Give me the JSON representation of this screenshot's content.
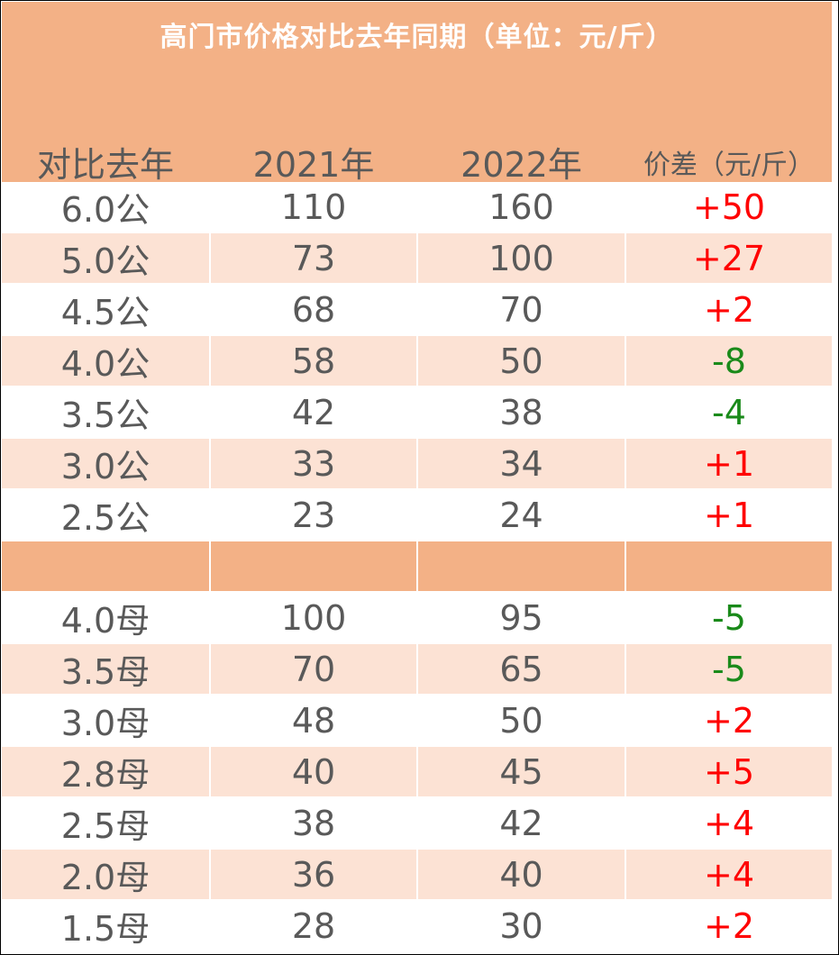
{
  "title": "高门市价格对比去年同期（单位：元/斤）",
  "headers": [
    "对比去年",
    "2021年",
    "2022年",
    "价差（元/斤）"
  ],
  "male_rows": [
    {
      "size": "6.0公",
      "y2021": "110",
      "y2022": "160",
      "diff": "+50",
      "sign": "pos"
    },
    {
      "size": "5.0公",
      "y2021": "73",
      "y2022": "100",
      "diff": "+27",
      "sign": "pos"
    },
    {
      "size": "4.5公",
      "y2021": "68",
      "y2022": "70",
      "diff": "+2",
      "sign": "pos"
    },
    {
      "size": "4.0公",
      "y2021": "58",
      "y2022": "50",
      "diff": "-8",
      "sign": "neg"
    },
    {
      "size": "3.5公",
      "y2021": "42",
      "y2022": "38",
      "diff": "-4",
      "sign": "neg"
    },
    {
      "size": "3.0公",
      "y2021": "33",
      "y2022": "34",
      "diff": "+1",
      "sign": "pos"
    },
    {
      "size": "2.5公",
      "y2021": "23",
      "y2022": "24",
      "diff": "+1",
      "sign": "pos"
    }
  ],
  "female_rows": [
    {
      "size": "4.0母",
      "y2021": "100",
      "y2022": "95",
      "diff": "-5",
      "sign": "neg"
    },
    {
      "size": "3.5母",
      "y2021": "70",
      "y2022": "65",
      "diff": "-5",
      "sign": "neg"
    },
    {
      "size": "3.0母",
      "y2021": "48",
      "y2022": "50",
      "diff": "+2",
      "sign": "pos"
    },
    {
      "size": "2.8母",
      "y2021": "40",
      "y2022": "45",
      "diff": "+5",
      "sign": "pos"
    },
    {
      "size": "2.5母",
      "y2021": "38",
      "y2022": "42",
      "diff": "+4",
      "sign": "pos"
    },
    {
      "size": "2.0母",
      "y2021": "36",
      "y2022": "40",
      "diff": "+4",
      "sign": "pos"
    },
    {
      "size": "1.5母",
      "y2021": "28",
      "y2022": "30",
      "diff": "+2",
      "sign": "pos"
    }
  ],
  "colors": {
    "header_bg": "#f3b186",
    "alt_row_bg": "#fce2d4",
    "positive": "#ff0000",
    "negative": "#1a8a1a",
    "text": "#595959"
  }
}
